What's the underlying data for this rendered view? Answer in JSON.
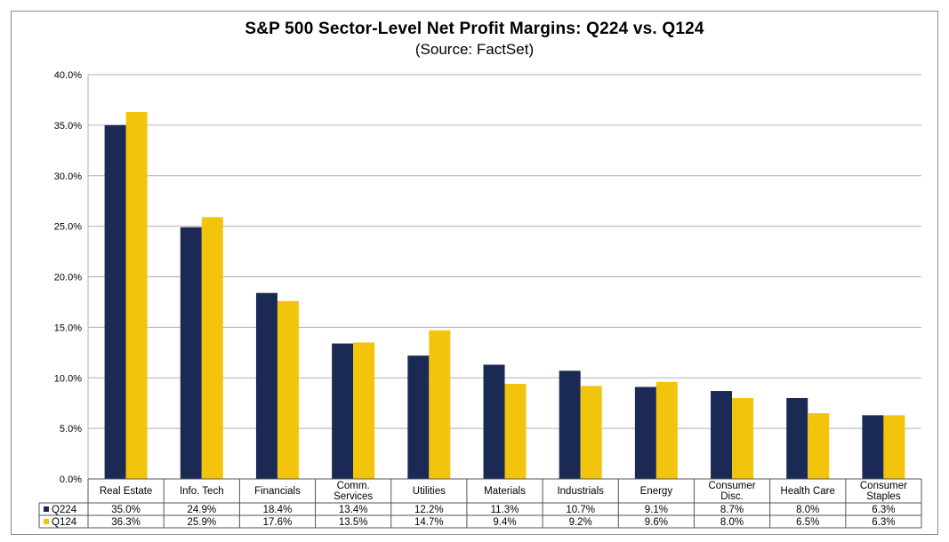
{
  "title": "S&P 500 Sector-Level Net Profit Margins: Q224 vs. Q124",
  "subtitle": "(Source: FactSet)",
  "colors": {
    "q224": "#1b2a55",
    "q124": "#f2c40c",
    "grid": "#b0b0b0"
  },
  "chart_data": {
    "type": "bar",
    "categories": [
      "Real Estate",
      "Info. Tech",
      "Financials",
      "Comm. Services",
      "Utilities",
      "Materials",
      "Industrials",
      "Energy",
      "Consumer Disc.",
      "Health Care",
      "Consumer Staples"
    ],
    "category_lines": [
      [
        "Real Estate"
      ],
      [
        "Info. Tech"
      ],
      [
        "Financials"
      ],
      [
        "Comm.",
        "Services"
      ],
      [
        "Utilities"
      ],
      [
        "Materials"
      ],
      [
        "Industrials"
      ],
      [
        "Energy"
      ],
      [
        "Consumer",
        "Disc."
      ],
      [
        "Health Care"
      ],
      [
        "Consumer",
        "Staples"
      ]
    ],
    "series": [
      {
        "name": "Q224",
        "values": [
          35.0,
          24.9,
          18.4,
          13.4,
          12.2,
          11.3,
          10.7,
          9.1,
          8.7,
          8.0,
          6.3
        ],
        "labels": [
          "35.0%",
          "24.9%",
          "18.4%",
          "13.4%",
          "12.2%",
          "11.3%",
          "10.7%",
          "9.1%",
          "8.7%",
          "8.0%",
          "6.3%"
        ]
      },
      {
        "name": "Q124",
        "values": [
          36.3,
          25.9,
          17.6,
          13.5,
          14.7,
          9.4,
          9.2,
          9.6,
          8.0,
          6.5,
          6.3
        ],
        "labels": [
          "36.3%",
          "25.9%",
          "17.6%",
          "13.5%",
          "14.7%",
          "9.4%",
          "9.2%",
          "9.6%",
          "8.0%",
          "6.5%",
          "6.3%"
        ]
      }
    ],
    "ylim": [
      0,
      40
    ],
    "yticks": [
      0,
      5,
      10,
      15,
      20,
      25,
      30,
      35,
      40
    ],
    "ytick_labels": [
      "0.0%",
      "5.0%",
      "10.0%",
      "15.0%",
      "20.0%",
      "25.0%",
      "30.0%",
      "35.0%",
      "40.0%"
    ],
    "grid": true,
    "legend": "data table"
  }
}
